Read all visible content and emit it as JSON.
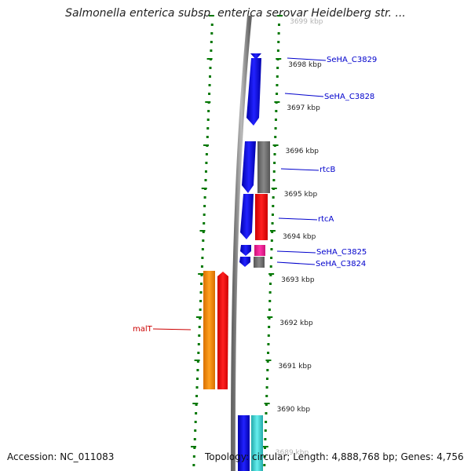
{
  "title": "Salmonella enterica subsp. enterica serovar Heidelberg str. ...",
  "footer": {
    "accession": "Accession: NC_011083",
    "topology": "Topology: circular; Length: 4,888,768 bp; Genes: 4,756"
  },
  "scale_labels": [
    "3699 kbp",
    "3698 kbp",
    "3697 kbp",
    "3696 kbp",
    "3695 kbp",
    "3694 kbp",
    "3693 kbp",
    "3692 kbp",
    "3691 kbp",
    "3690 kbp",
    "3689 kbp"
  ],
  "gene_labels": [
    {
      "text": "SeHA_C3829",
      "color": "#0000cc"
    },
    {
      "text": "SeHA_C3828",
      "color": "#0000cc"
    },
    {
      "text": "rtcB",
      "color": "#0000cc"
    },
    {
      "text": "rtcA",
      "color": "#0000cc"
    },
    {
      "text": "SeHA_C3825",
      "color": "#0000cc"
    },
    {
      "text": "SeHA_C3824",
      "color": "#0000cc"
    },
    {
      "text": "malT",
      "color": "#cc0000"
    }
  ],
  "colors": {
    "cds_forward": "#0000ff",
    "trna": "#ff0000",
    "gray_feature": "#707070",
    "orange_feature": "#ff8c00",
    "magenta_feature": "#ff1493",
    "cyan_feature": "#33cccc",
    "dotted_ring": "#007700",
    "backbone": "#888888"
  }
}
